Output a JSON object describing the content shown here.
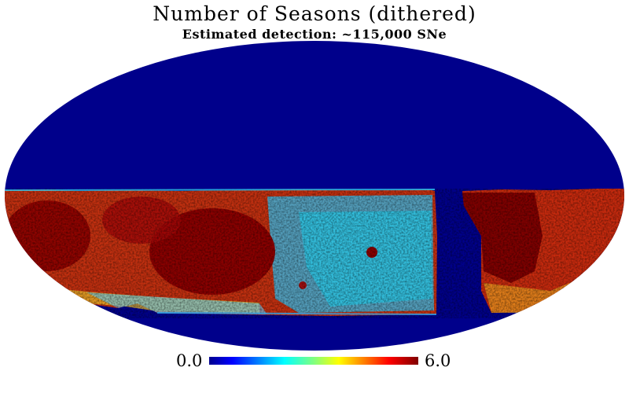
{
  "chart_data": {
    "type": "heatmap",
    "projection": "mollweide",
    "title": "Number of Seasons (dithered)",
    "subtitle": "Estimated detection: ~115,000 SNe",
    "colormap": "jet",
    "colorbar": {
      "min": 0.0,
      "max": 6.0,
      "min_label": "0.0",
      "max_label": "6.0",
      "placement": "bottom"
    },
    "colors": {
      "background_value": "#00008b",
      "high_value": "#800000"
    }
  }
}
